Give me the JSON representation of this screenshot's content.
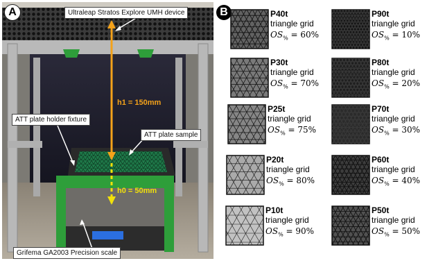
{
  "panel_labels": {
    "a": "A",
    "b": "B"
  },
  "panel_a": {
    "callouts": {
      "device": "Ultraleap Stratos Explore UMH device",
      "fixture": "ATT plate holder fixture",
      "sample": "ATT plate sample",
      "scale": "Grifema GA2003 Precision scale"
    },
    "dimensions": {
      "h1": "h1 = 150mm",
      "h0": "h0 = 50mm"
    },
    "colors": {
      "h1_arrow": "#f4a21a",
      "h0_arrow": "#f2e10a",
      "fixture_green": "#2e9e3a"
    }
  },
  "panel_b": {
    "unit_symbol": "%",
    "samples": [
      {
        "name": "P40t",
        "kind": "triangle grid",
        "os_var": "OS",
        "os_value": "= 60%",
        "darkness": 0.65
      },
      {
        "name": "P30t",
        "kind": "triangle grid",
        "os_var": "OS",
        "os_value": "= 70%",
        "darkness": 0.55
      },
      {
        "name": "P25t",
        "kind": "triangle grid",
        "os_var": "OS",
        "os_value": "= 75%",
        "darkness": 0.5
      },
      {
        "name": "P20t",
        "kind": "triangle grid",
        "os_var": "OS",
        "os_value": "= 80%",
        "darkness": 0.35
      },
      {
        "name": "P10t",
        "kind": "triangle grid",
        "os_var": "OS",
        "os_value": "= 90%",
        "darkness": 0.25
      },
      {
        "name": "P90t",
        "kind": "triangle grid",
        "os_var": "OS",
        "os_value": "= 10%",
        "darkness": 0.97
      },
      {
        "name": "P80t",
        "kind": "triangle grid",
        "os_var": "OS",
        "os_value": "= 20%",
        "darkness": 0.93
      },
      {
        "name": "P70t",
        "kind": "triangle grid",
        "os_var": "OS",
        "os_value": "= 30%",
        "darkness": 0.88
      },
      {
        "name": "P60t",
        "kind": "triangle grid",
        "os_var": "OS",
        "os_value": "= 40%",
        "darkness": 0.8
      },
      {
        "name": "P50t",
        "kind": "triangle grid",
        "os_var": "OS",
        "os_value": "= 50%",
        "darkness": 0.72
      }
    ]
  }
}
